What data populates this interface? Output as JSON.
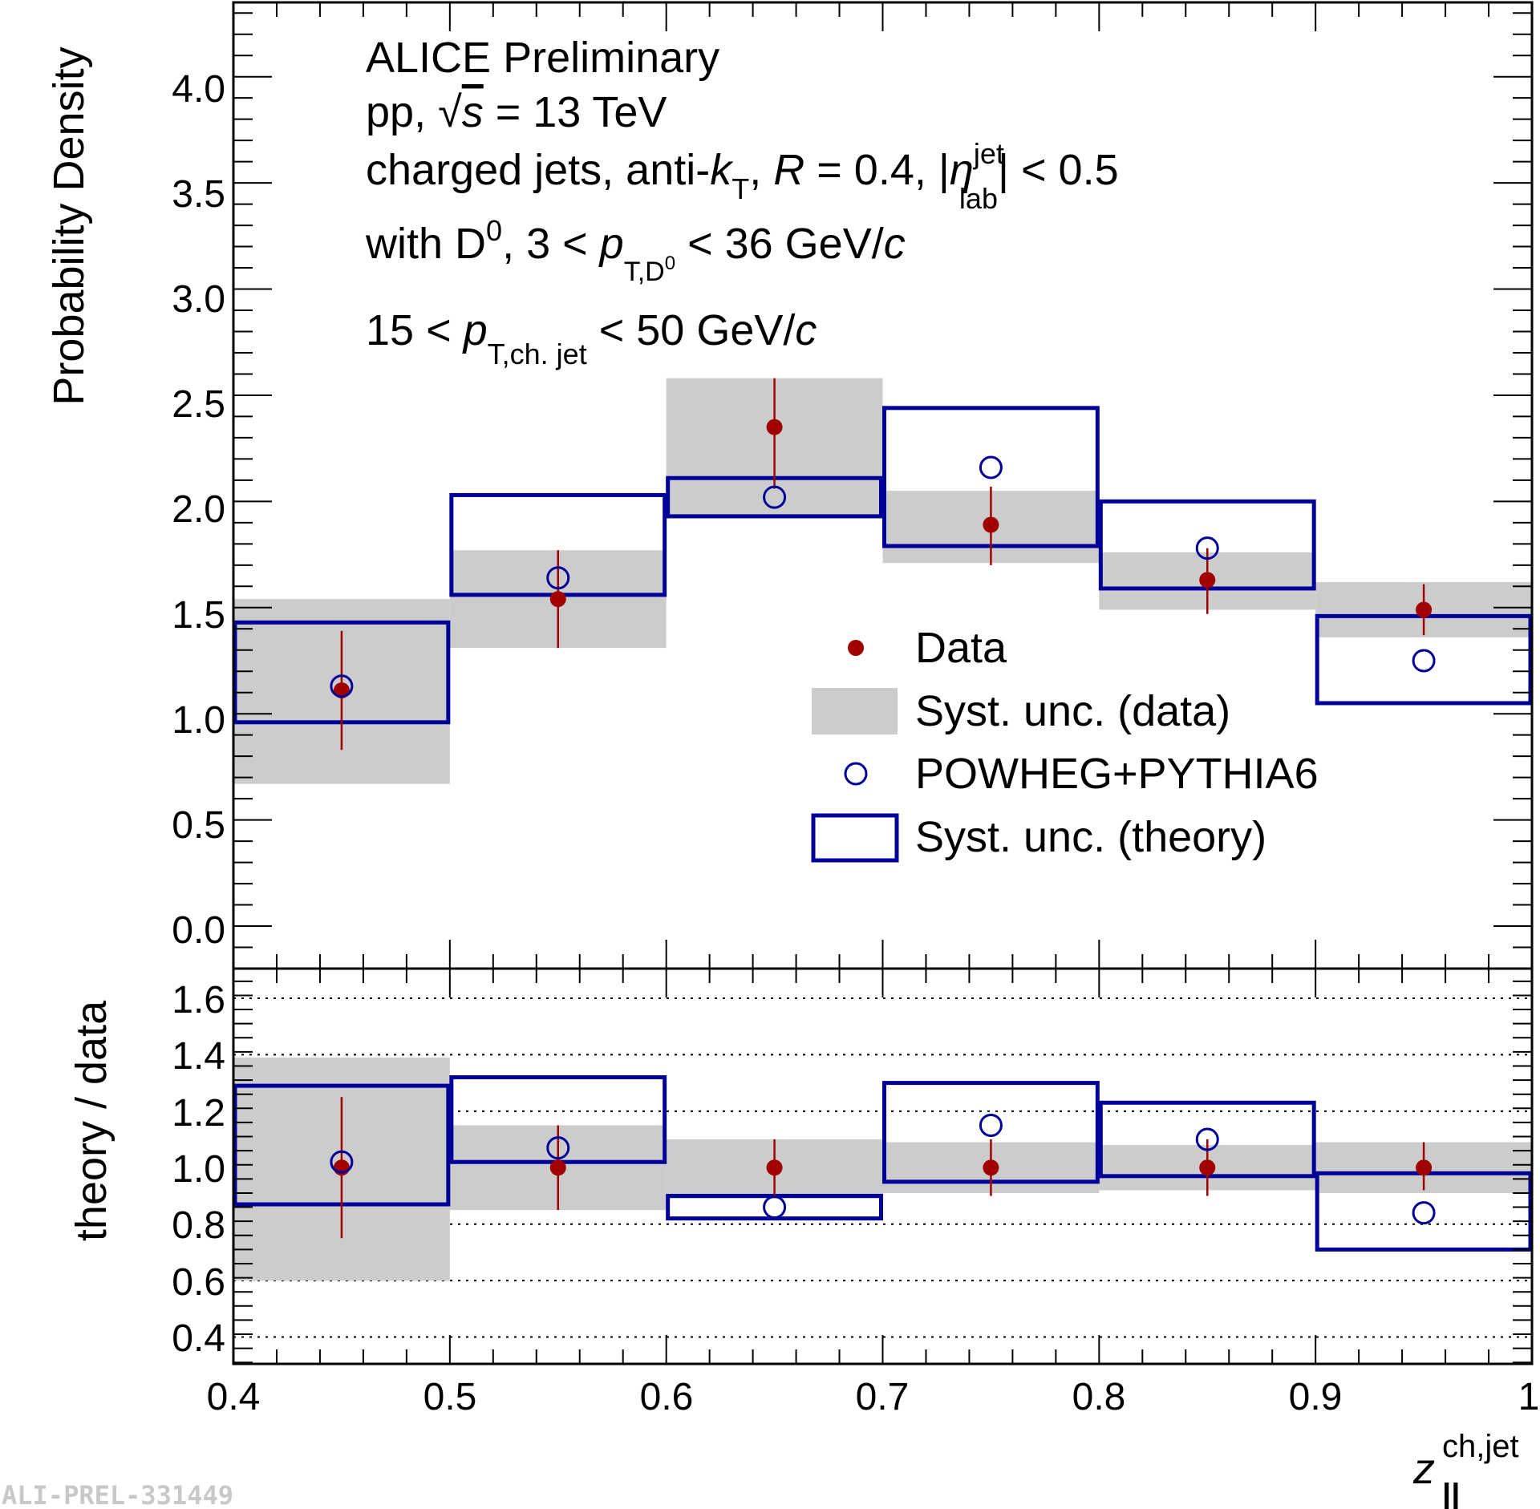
{
  "colors": {
    "data": "#a00000",
    "theory": "#000099",
    "syst_data": "#cccccc",
    "frame": "#000000"
  },
  "chart_data": [
    {
      "type": "scatter",
      "panel": "top",
      "bin_edges": [
        0.4,
        0.5,
        0.6,
        0.7,
        0.8,
        0.9,
        1.0
      ],
      "x": [
        0.45,
        0.55,
        0.65,
        0.75,
        0.85,
        0.95
      ],
      "xlim": [
        0.4,
        1.0
      ],
      "ylim": [
        -0.2,
        4.35
      ],
      "ylabel": "Probability Density",
      "yticks": [
        "0.0",
        "0.5",
        "1.0",
        "1.5",
        "2.0",
        "2.5",
        "3.0",
        "3.5",
        "4.0"
      ],
      "series": [
        {
          "name": "Data",
          "values": [
            1.11,
            1.54,
            2.35,
            1.89,
            1.63,
            1.49
          ],
          "err_low": [
            0.83,
            1.31,
            2.06,
            1.7,
            1.47,
            1.37
          ],
          "err_high": [
            1.39,
            1.77,
            2.58,
            2.07,
            1.78,
            1.61
          ]
        },
        {
          "name": "Syst. unc. (data)",
          "low": [
            0.67,
            1.31,
            1.92,
            1.71,
            1.49,
            1.36
          ],
          "high": [
            1.54,
            1.77,
            2.58,
            2.05,
            1.76,
            1.62
          ]
        },
        {
          "name": "POWHEG+PYTHIA6",
          "values": [
            1.13,
            1.64,
            2.02,
            2.16,
            1.78,
            1.25
          ]
        },
        {
          "name": "Syst. unc. (theory)",
          "low": [
            0.96,
            1.56,
            1.93,
            1.79,
            1.59,
            1.05
          ],
          "high": [
            1.43,
            2.03,
            2.11,
            2.44,
            2.0,
            1.46
          ]
        }
      ],
      "annotations": {
        "line1": "ALICE Preliminary",
        "line2_prefix": "pp, ",
        "line2_sqrt": "√",
        "line2_s": "s",
        "line2_suffix": " = 13 TeV",
        "line3_a": "charged jets, anti-",
        "line3_k": "k",
        "line3_ksub": "T",
        "line3_b": ", ",
        "line3_R": "R",
        "line3_c": " = 0.4, |",
        "line3_eta": "η",
        "line3_etasup": "jet",
        "line3_etasub": "lab",
        "line3_d": "| < 0.5",
        "line4_a": "with D",
        "line4_sup": "0",
        "line4_b": ", 3 < ",
        "line4_p": "p",
        "line4_sub": "T,D",
        "line4_subsup": "0",
        "line4_c": " < 36 GeV/",
        "line4_unit": "c",
        "line5_a": "15 < ",
        "line5_p": "p",
        "line5_sub": "T,ch. jet",
        "line5_b": " < 50 GeV/",
        "line5_unit": "c"
      },
      "legend": [
        "Data",
        "Syst. unc. (data)",
        "POWHEG+PYTHIA6",
        "Syst. unc. (theory)"
      ]
    },
    {
      "type": "scatter",
      "panel": "ratio",
      "x": [
        0.45,
        0.55,
        0.65,
        0.75,
        0.85,
        0.95
      ],
      "xlim": [
        0.4,
        1.0
      ],
      "ylim": [
        0.305,
        1.705
      ],
      "ylabel": "theory / data",
      "xlabel": "z",
      "xlabel_sup": "ch,jet",
      "xlabel_sub": "||",
      "yticks": [
        "0.4",
        "0.6",
        "0.8",
        "1.0",
        "1.2",
        "1.4",
        "1.6"
      ],
      "xticks": [
        "0.4",
        "0.5",
        "0.6",
        "0.7",
        "0.8",
        "0.9",
        "1"
      ],
      "gridlines": [
        0.4,
        0.6,
        0.8,
        1.0,
        1.2,
        1.4,
        1.6
      ],
      "series": [
        {
          "name": "Data",
          "values": [
            1.0,
            1.0,
            1.0,
            1.0,
            1.0,
            1.0
          ],
          "err_low": [
            0.75,
            0.85,
            0.9,
            0.9,
            0.9,
            0.92
          ],
          "err_high": [
            1.25,
            1.15,
            1.1,
            1.1,
            1.1,
            1.09
          ]
        },
        {
          "name": "Syst. unc. (data)",
          "low": [
            0.6,
            0.85,
            0.89,
            0.91,
            0.92,
            0.91
          ],
          "high": [
            1.39,
            1.15,
            1.1,
            1.09,
            1.08,
            1.09
          ]
        },
        {
          "name": "POWHEG+PYTHIA6",
          "values": [
            1.02,
            1.07,
            0.86,
            1.15,
            1.1,
            0.84
          ]
        },
        {
          "name": "Syst. unc. (theory)",
          "low": [
            0.87,
            1.02,
            0.82,
            0.95,
            0.97,
            0.71
          ],
          "high": [
            1.29,
            1.32,
            0.9,
            1.3,
            1.23,
            0.98
          ]
        }
      ]
    }
  ],
  "watermark": "ALI-PREL-331449"
}
